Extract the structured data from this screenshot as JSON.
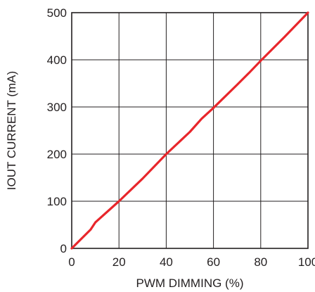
{
  "chart_data": {
    "type": "line",
    "title": "",
    "xlabel": "PWM DIMMING (%)",
    "ylabel": "IOUT CURRENT (mA)",
    "xlim": [
      0,
      100
    ],
    "ylim": [
      0,
      500
    ],
    "xticks": [
      0,
      20,
      40,
      60,
      80,
      100
    ],
    "yticks": [
      0,
      100,
      200,
      300,
      400,
      500
    ],
    "xtick_labels": [
      "0",
      "20",
      "40",
      "60",
      "80",
      "100"
    ],
    "ytick_labels": [
      "0",
      "100",
      "200",
      "300",
      "400",
      "500"
    ],
    "grid": true,
    "legend": "none",
    "series": [
      {
        "color": "#e8262b",
        "x": [
          0,
          8,
          10,
          20,
          30,
          40,
          50,
          55,
          60,
          70,
          75,
          80,
          90,
          100
        ],
        "y": [
          0,
          40,
          55,
          100,
          148,
          200,
          247,
          275,
          298,
          347,
          372,
          398,
          448,
          500
        ]
      }
    ]
  }
}
